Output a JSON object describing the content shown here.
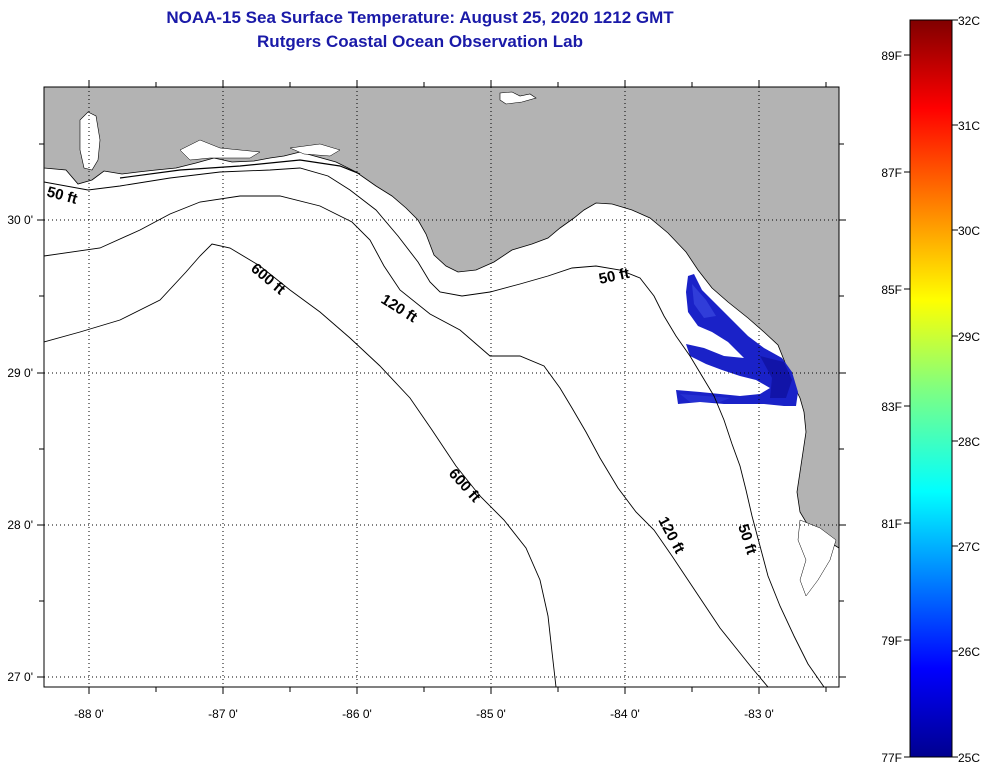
{
  "title": "NOAA-15 Sea Surface Temperature:  August 25, 2020 1212 GMT",
  "subtitle": "Rutgers Coastal Ocean Observation Lab",
  "map": {
    "lon_labels": [
      "-88 0'",
      "-87 0'",
      "-86 0'",
      "-85 0'",
      "-84 0'",
      "-83 0'"
    ],
    "lat_labels": [
      "30 0'",
      "29 0'",
      "28 0'",
      "27 0'"
    ],
    "contour_labels": {
      "c50_west": "50 ft",
      "c50_bigbend": "50 ft",
      "c50_south": "50 ft",
      "c120_north": "120 ft",
      "c120_south": "120 ft",
      "c600_north": "600 ft",
      "c600_south": "600 ft"
    },
    "colors": {
      "land": "#b3b3b3",
      "water": "#ffffff",
      "sst_patch": "#1a22c8",
      "title": "#1a1aa8"
    }
  },
  "colorbar": {
    "celsius_labels": [
      "32C",
      "31C",
      "30C",
      "29C",
      "28C",
      "27C",
      "26C",
      "25C"
    ],
    "fahrenheit_labels": [
      "89F",
      "87F",
      "85F",
      "83F",
      "81F",
      "79F",
      "77F"
    ],
    "range_c": [
      25,
      32
    ],
    "range_f": [
      77,
      89.6
    ]
  }
}
